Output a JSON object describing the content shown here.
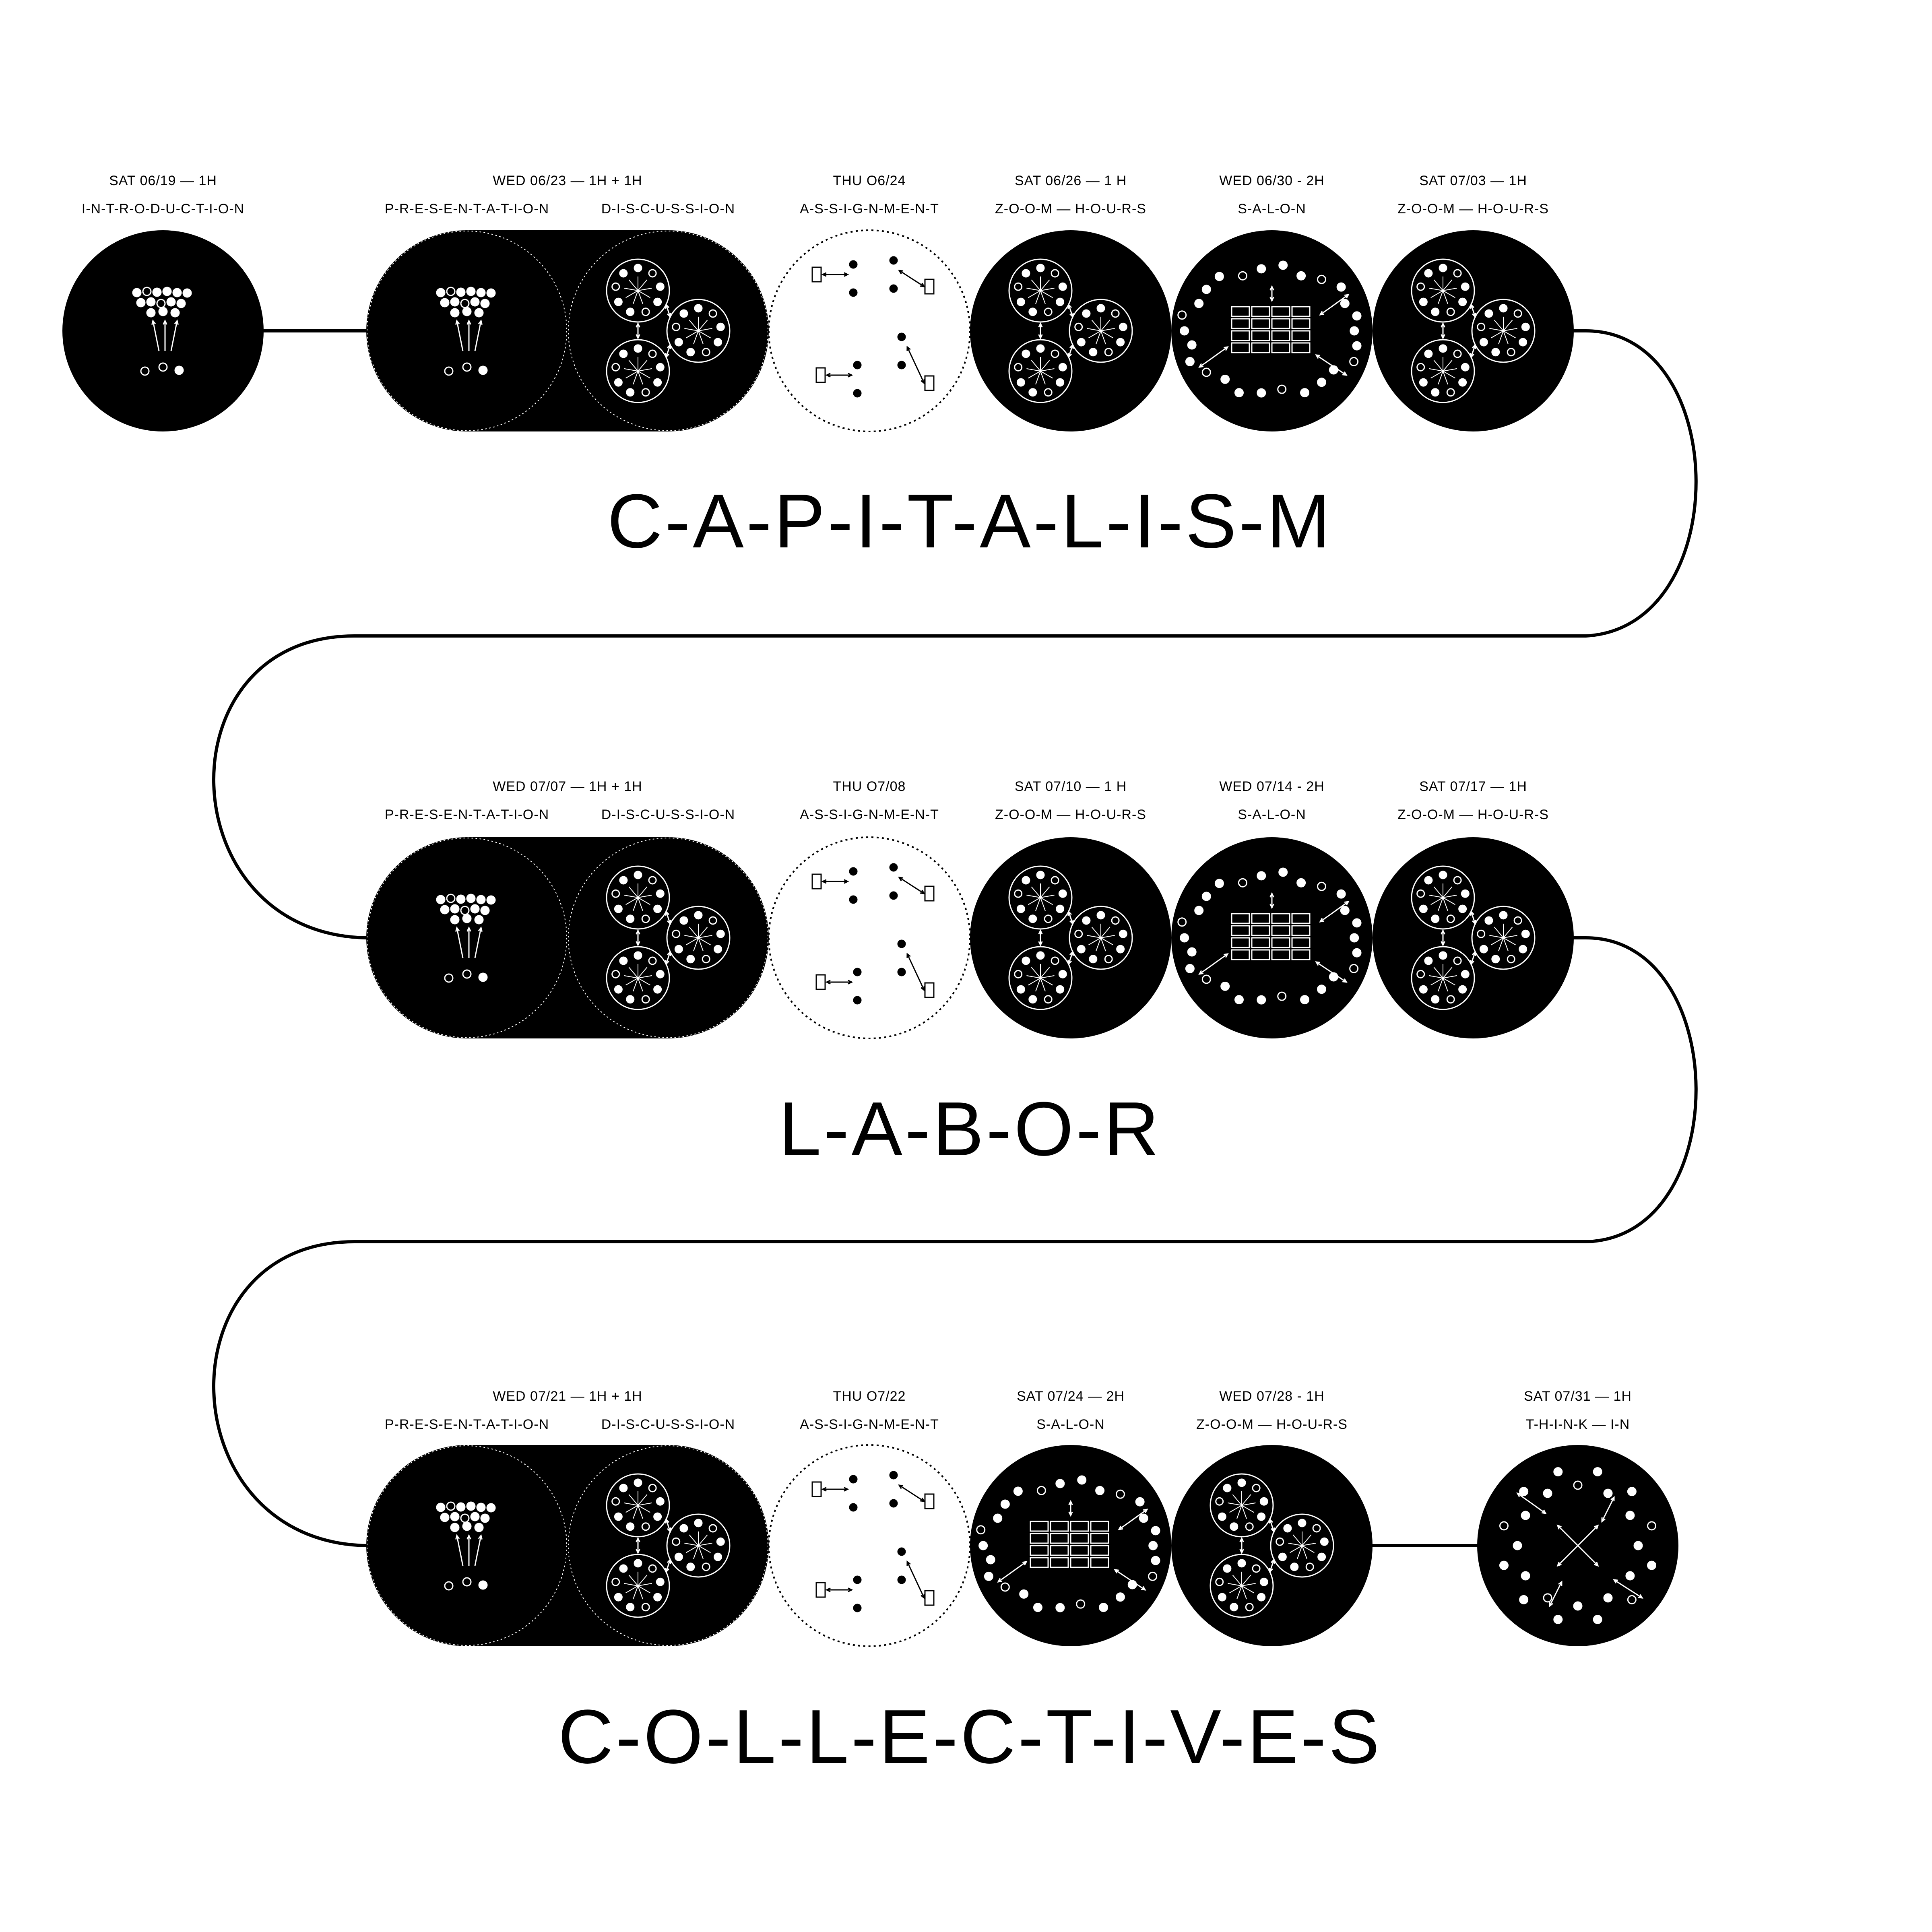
{
  "colors": {
    "background": "#ffffff",
    "ink": "#000000"
  },
  "sections": [
    {
      "title": "C-A-P-I-T-A-L-I-S-M",
      "sessions": [
        {
          "date": "SAT 06/19 — 1H",
          "labels": [
            "I-N-T-R-O-D-U-C-T-I-O-N"
          ],
          "icon": "introduction-icon"
        },
        {
          "date": "WED 06/23 — 1H + 1H",
          "labels": [
            "P-R-E-S-E-N-T-A-T-I-O-N",
            "D-I-S-C-U-S-S-I-O-N"
          ],
          "icon": "presentation-discussion-icon"
        },
        {
          "date": "THU O6/24",
          "labels": [
            "A-S-S-I-G-N-M-E-N-T"
          ],
          "icon": "assignment-icon"
        },
        {
          "date": "SAT 06/26 — 1 H",
          "labels": [
            "Z-O-O-M — H-O-U-R-S"
          ],
          "icon": "zoom-hours-icon"
        },
        {
          "date": "WED 06/30 - 2H",
          "labels": [
            "S-A-L-O-N"
          ],
          "icon": "salon-icon"
        },
        {
          "date": "SAT 07/03 — 1H",
          "labels": [
            "Z-O-O-M — H-O-U-R-S"
          ],
          "icon": "zoom-hours-icon"
        }
      ]
    },
    {
      "title": "L-A-B-O-R",
      "sessions": [
        {
          "date": "WED 07/07 — 1H + 1H",
          "labels": [
            "P-R-E-S-E-N-T-A-T-I-O-N",
            "D-I-S-C-U-S-S-I-O-N"
          ],
          "icon": "presentation-discussion-icon"
        },
        {
          "date": "THU O7/08",
          "labels": [
            "A-S-S-I-G-N-M-E-N-T"
          ],
          "icon": "assignment-icon"
        },
        {
          "date": "SAT 07/10 — 1 H",
          "labels": [
            "Z-O-O-M — H-O-U-R-S"
          ],
          "icon": "zoom-hours-icon"
        },
        {
          "date": "WED 07/14 - 2H",
          "labels": [
            "S-A-L-O-N"
          ],
          "icon": "salon-icon"
        },
        {
          "date": "SAT 07/17 — 1H",
          "labels": [
            "Z-O-O-M — H-O-U-R-S"
          ],
          "icon": "zoom-hours-icon"
        }
      ]
    },
    {
      "title": "C-O-L-L-E-C-T-I-V-E-S",
      "sessions": [
        {
          "date": "WED 07/21 — 1H + 1H",
          "labels": [
            "P-R-E-S-E-N-T-A-T-I-O-N",
            "D-I-S-C-U-S-S-I-O-N"
          ],
          "icon": "presentation-discussion-icon"
        },
        {
          "date": "THU O7/22",
          "labels": [
            "A-S-S-I-G-N-M-E-N-T"
          ],
          "icon": "assignment-icon"
        },
        {
          "date": "SAT 07/24 — 2H",
          "labels": [
            "S-A-L-O-N"
          ],
          "icon": "salon-icon"
        },
        {
          "date": "WED 07/28 - 1H",
          "labels": [
            "Z-O-O-M — H-O-U-R-S"
          ],
          "icon": "zoom-hours-icon"
        },
        {
          "date": "SAT 07/31 — 1H",
          "labels": [
            "T-H-I-N-K — I-N"
          ],
          "icon": "think-in-icon"
        }
      ]
    }
  ]
}
